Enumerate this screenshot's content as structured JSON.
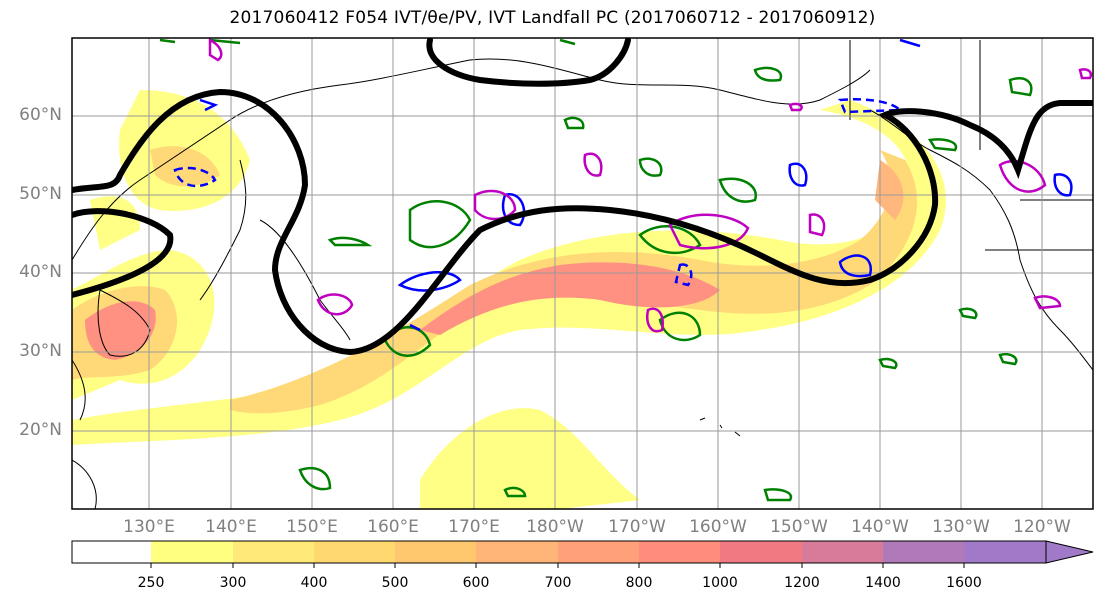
{
  "title": "2017060412 F054 IVT/θe/PV, IVT Landfall PC (2017060712 - 2017060912)",
  "lat_labels": [
    "60°N",
    "50°N",
    "40°N",
    "30°N",
    "20°N"
  ],
  "lon_labels": [
    "130°E",
    "140°E",
    "150°E",
    "160°E",
    "170°E",
    "180°W",
    "170°W",
    "160°W",
    "150°W",
    "140°W",
    "130°W",
    "120°W"
  ],
  "colorbar": {
    "ticks": [
      "250",
      "300",
      "400",
      "500",
      "600",
      "700",
      "800",
      "1000",
      "1200",
      "1400",
      "1600"
    ],
    "colors": [
      "#ffffff",
      "#ffff80",
      "#ffe978",
      "#ffd870",
      "#ffc86e",
      "#ffb478",
      "#ffa07a",
      "#ff8c7c",
      "#f07a82",
      "#d87a9a",
      "#b07ab8",
      "#a07ac8"
    ]
  },
  "legend_colors": {
    "ivt_shading": "#ff8c7c",
    "theta_e_contour": "#000000",
    "pv_contour_green": "#008000",
    "pv_contour_blue": "#0000ff",
    "pv_contour_magenta": "#c000c0"
  }
}
